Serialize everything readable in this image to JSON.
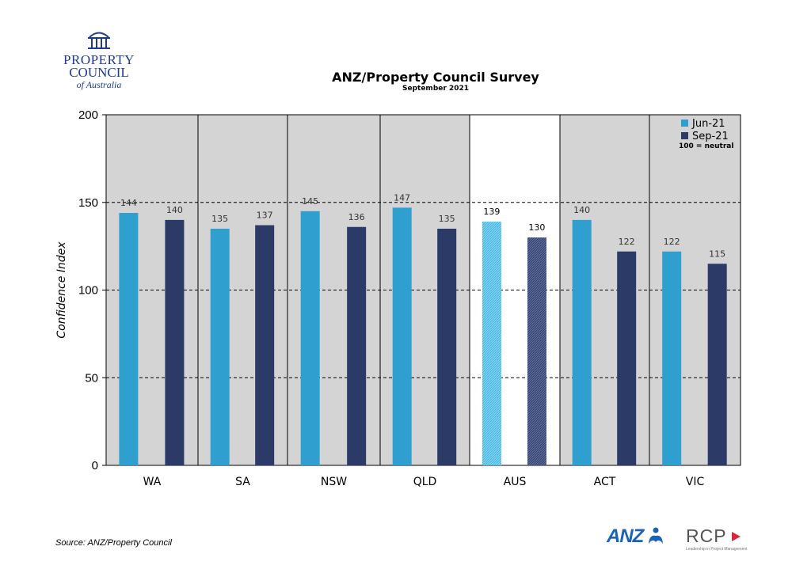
{
  "header": {
    "title": "ANZ/Property Council Survey",
    "subtitle": "September 2021",
    "logo_line1": "PROPERTY",
    "logo_line2": "COUNCIL",
    "logo_line3": "of Australia"
  },
  "footer": {
    "source": "Source: ANZ/Property Council",
    "anz_logo": "ANZ",
    "rcp_logo": "RCP",
    "rcp_tagline": "Leadership in Project Management"
  },
  "chart_data": {
    "type": "bar",
    "title": "ANZ/Property Council Survey",
    "subtitle": "September 2021",
    "ylabel": "Confidence Index",
    "xlabel": "",
    "ylim": [
      0,
      200
    ],
    "yticks": [
      0,
      50,
      100,
      150,
      200
    ],
    "categories": [
      "WA",
      "SA",
      "NSW",
      "QLD",
      "AUS",
      "ACT",
      "VIC"
    ],
    "highlight_category": "AUS",
    "series": [
      {
        "name": "Jun-21",
        "color": "#2e9fce",
        "values": [
          144,
          135,
          145,
          147,
          139,
          140,
          122
        ]
      },
      {
        "name": "Sep-21",
        "color": "#2b3a66",
        "values": [
          140,
          137,
          136,
          135,
          130,
          122,
          115
        ]
      }
    ],
    "legend_note": "100 = neutral",
    "legend_position": "top-right",
    "grid": "dashed horizontal at 50, 100, 150",
    "panel_color": "#d4d4d4",
    "highlight_panel_color": "#ffffff"
  }
}
